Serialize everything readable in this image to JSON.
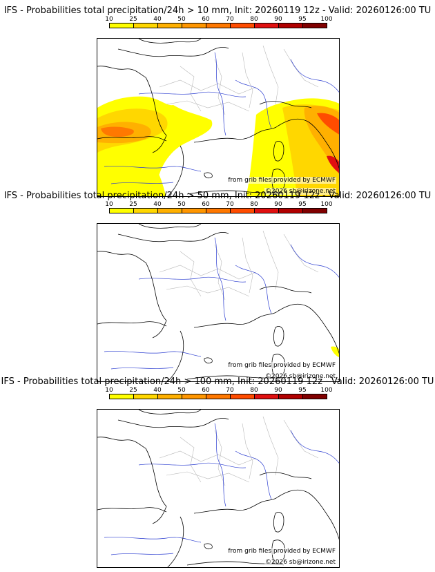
{
  "colorbar": {
    "ticks": [
      "10",
      "25",
      "40",
      "50",
      "60",
      "70",
      "80",
      "90",
      "95",
      "100"
    ],
    "colors": [
      "#ffff00",
      "#ffd700",
      "#ffb000",
      "#ff9600",
      "#ff7800",
      "#ff4c00",
      "#e01010",
      "#b00000",
      "#800000",
      "#4a0000"
    ]
  },
  "panels": [
    {
      "title": "IFS - Probabilities total precipitation/24h > 10 mm, Init: 20260119 12z - Valid: 20260126:00 TU",
      "credit_source": "from grib files provided by ECMWF",
      "credit_copyright": "©2026 sb@irizone.net",
      "max_probability": 85
    },
    {
      "title": "IFS - Probabilities total precipitation/24h > 50 mm, Init: 20260119 12z - Valid: 20260126:00 TU",
      "credit_source": "from grib files provided by ECMWF",
      "credit_copyright": "©2026 sb@irizone.net",
      "max_probability": 15
    },
    {
      "title": "IFS - Probabilities total precipitation/24h > 100 mm, Init: 20260119 12z - Valid: 20260126:00 TU",
      "credit_source": "from grib files provided by ECMWF",
      "credit_copyright": "©2026 sb@irizone.net",
      "max_probability": 0
    }
  ]
}
